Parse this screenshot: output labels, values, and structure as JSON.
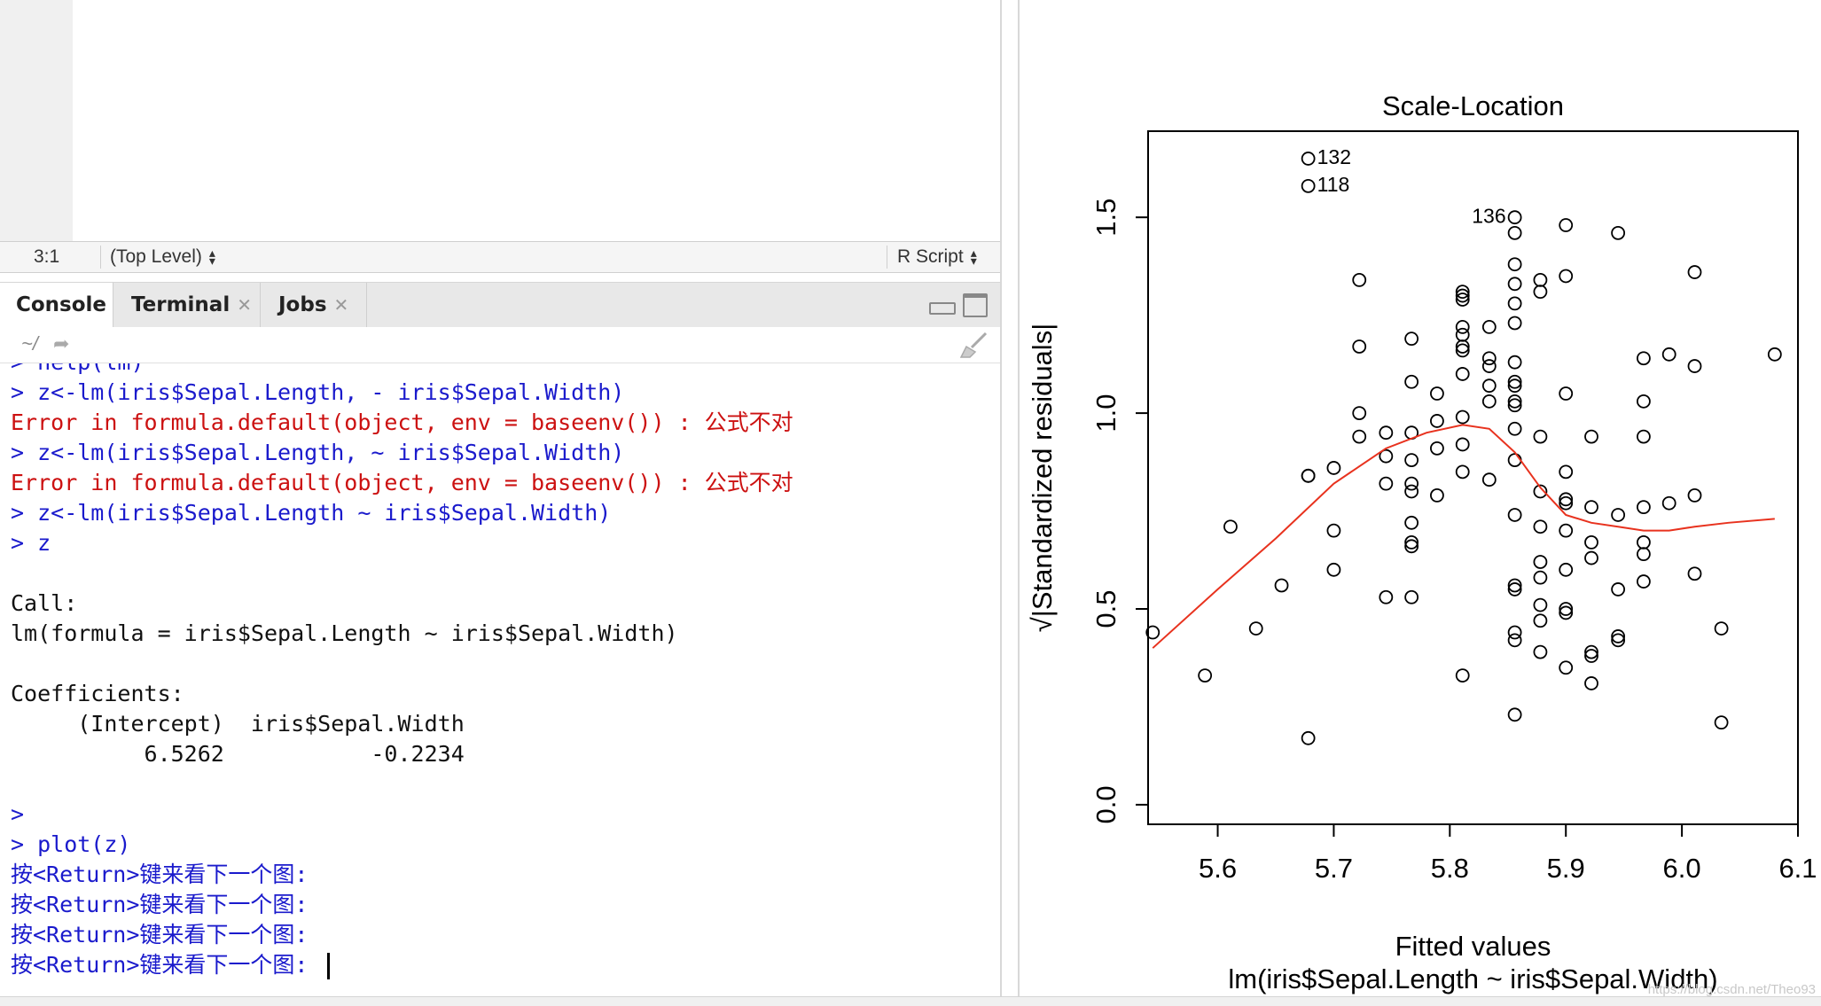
{
  "status_bar": {
    "position": "3:1",
    "scope": "(Top Level)",
    "file_type": "R Script"
  },
  "tabs": [
    {
      "label": "Console",
      "active": true,
      "closable": false
    },
    {
      "label": "Terminal",
      "active": false,
      "closable": true
    },
    {
      "label": "Jobs",
      "active": false,
      "closable": true
    }
  ],
  "path_bar": {
    "path": "~/",
    "icon": "arrow-share-icon",
    "clear_icon": "broom-icon"
  },
  "console": {
    "lines": [
      {
        "type": "cmd",
        "text": "> help(lm)"
      },
      {
        "type": "cmd",
        "text": "> z<-lm(iris$Sepal.Length, - iris$Sepal.Width)"
      },
      {
        "type": "err",
        "text": "Error in formula.default(object, env = baseenv()) : 公式不对"
      },
      {
        "type": "cmd",
        "text": "> z<-lm(iris$Sepal.Length, ~ iris$Sepal.Width)"
      },
      {
        "type": "err",
        "text": "Error in formula.default(object, env = baseenv()) : 公式不对"
      },
      {
        "type": "cmd",
        "text": "> z<-lm(iris$Sepal.Length ~ iris$Sepal.Width)"
      },
      {
        "type": "cmd",
        "text": "> z"
      },
      {
        "type": "out",
        "text": ""
      },
      {
        "type": "out",
        "text": "Call:"
      },
      {
        "type": "out",
        "text": "lm(formula = iris$Sepal.Length ~ iris$Sepal.Width)"
      },
      {
        "type": "out",
        "text": ""
      },
      {
        "type": "out",
        "text": "Coefficients:"
      },
      {
        "type": "out",
        "text": "     (Intercept)  iris$Sepal.Width"
      },
      {
        "type": "out",
        "text": "          6.5262           -0.2234"
      },
      {
        "type": "out",
        "text": ""
      },
      {
        "type": "cmd",
        "text": ">"
      },
      {
        "type": "cmd",
        "text": "> plot(z)"
      },
      {
        "type": "cmd",
        "text": "按<Return>键来看下一个图:"
      },
      {
        "type": "cmd",
        "text": "按<Return>键来看下一个图:"
      },
      {
        "type": "cmd",
        "text": "按<Return>键来看下一个图:"
      },
      {
        "type": "cmd",
        "text": "按<Return>键来看下一个图: "
      }
    ]
  },
  "chart_data": {
    "type": "scatter",
    "title": "Scale-Location",
    "xlabel": "Fitted values",
    "xlabel2": "lm(iris$Sepal.Length ~ iris$Sepal.Width)",
    "ylabel": "√|Standardized residuals|",
    "xlim": [
      5.54,
      6.1
    ],
    "ylim": [
      -0.05,
      1.72
    ],
    "x_ticks": [
      "5.6",
      "5.7",
      "5.8",
      "5.9",
      "6.0",
      "6.1"
    ],
    "x_tick_values": [
      5.6,
      5.7,
      5.8,
      5.9,
      6.0,
      6.1
    ],
    "y_ticks": [
      "0.0",
      "0.5",
      "1.0",
      "1.5"
    ],
    "y_tick_values": [
      0.0,
      0.5,
      1.0,
      1.5
    ],
    "points": [
      [
        5.544,
        0.44
      ],
      [
        5.589,
        0.33
      ],
      [
        5.633,
        0.45
      ],
      [
        5.611,
        0.71
      ],
      [
        5.655,
        0.56
      ],
      [
        5.678,
        0.17
      ],
      [
        5.678,
        0.84
      ],
      [
        5.678,
        0.84
      ],
      [
        5.7,
        0.6
      ],
      [
        5.7,
        0.7
      ],
      [
        5.7,
        0.86
      ],
      [
        5.678,
        1.65
      ],
      [
        5.678,
        1.58
      ],
      [
        5.722,
        0.94
      ],
      [
        5.722,
        1.0
      ],
      [
        5.722,
        1.17
      ],
      [
        5.722,
        1.34
      ],
      [
        5.745,
        0.53
      ],
      [
        5.745,
        0.82
      ],
      [
        5.745,
        0.89
      ],
      [
        5.745,
        0.95
      ],
      [
        5.767,
        0.53
      ],
      [
        5.767,
        0.66
      ],
      [
        5.767,
        0.67
      ],
      [
        5.767,
        0.72
      ],
      [
        5.767,
        0.8
      ],
      [
        5.767,
        0.82
      ],
      [
        5.767,
        0.88
      ],
      [
        5.767,
        0.95
      ],
      [
        5.767,
        1.08
      ],
      [
        5.767,
        1.19
      ],
      [
        5.789,
        0.79
      ],
      [
        5.789,
        0.91
      ],
      [
        5.789,
        0.98
      ],
      [
        5.789,
        1.05
      ],
      [
        5.811,
        0.33
      ],
      [
        5.811,
        0.85
      ],
      [
        5.811,
        0.92
      ],
      [
        5.811,
        0.99
      ],
      [
        5.811,
        1.1
      ],
      [
        5.811,
        1.16
      ],
      [
        5.811,
        1.17
      ],
      [
        5.811,
        1.2
      ],
      [
        5.811,
        1.22
      ],
      [
        5.811,
        1.29
      ],
      [
        5.811,
        1.3
      ],
      [
        5.811,
        1.31
      ],
      [
        5.834,
        0.83
      ],
      [
        5.834,
        1.03
      ],
      [
        5.834,
        1.07
      ],
      [
        5.834,
        1.12
      ],
      [
        5.834,
        1.14
      ],
      [
        5.834,
        1.22
      ],
      [
        5.856,
        0.23
      ],
      [
        5.856,
        0.42
      ],
      [
        5.856,
        0.44
      ],
      [
        5.856,
        0.55
      ],
      [
        5.856,
        0.56
      ],
      [
        5.856,
        0.74
      ],
      [
        5.856,
        0.88
      ],
      [
        5.856,
        0.96
      ],
      [
        5.856,
        1.02
      ],
      [
        5.856,
        1.03
      ],
      [
        5.856,
        1.07
      ],
      [
        5.856,
        1.08
      ],
      [
        5.856,
        1.13
      ],
      [
        5.856,
        1.23
      ],
      [
        5.856,
        1.28
      ],
      [
        5.856,
        1.33
      ],
      [
        5.856,
        1.38
      ],
      [
        5.856,
        1.46
      ],
      [
        5.856,
        1.5
      ],
      [
        5.878,
        0.39
      ],
      [
        5.878,
        0.47
      ],
      [
        5.878,
        0.51
      ],
      [
        5.878,
        0.58
      ],
      [
        5.878,
        0.62
      ],
      [
        5.878,
        0.71
      ],
      [
        5.878,
        0.8
      ],
      [
        5.878,
        0.94
      ],
      [
        5.878,
        1.31
      ],
      [
        5.878,
        1.34
      ],
      [
        5.9,
        0.35
      ],
      [
        5.9,
        0.49
      ],
      [
        5.9,
        0.5
      ],
      [
        5.9,
        0.6
      ],
      [
        5.9,
        0.7
      ],
      [
        5.9,
        0.77
      ],
      [
        5.9,
        0.78
      ],
      [
        5.9,
        0.85
      ],
      [
        5.9,
        1.05
      ],
      [
        5.9,
        1.35
      ],
      [
        5.9,
        1.48
      ],
      [
        5.922,
        0.31
      ],
      [
        5.922,
        0.38
      ],
      [
        5.922,
        0.39
      ],
      [
        5.922,
        0.63
      ],
      [
        5.922,
        0.67
      ],
      [
        5.922,
        0.76
      ],
      [
        5.922,
        0.94
      ],
      [
        5.945,
        0.42
      ],
      [
        5.945,
        0.43
      ],
      [
        5.945,
        0.55
      ],
      [
        5.945,
        0.74
      ],
      [
        5.945,
        1.46
      ],
      [
        5.967,
        0.57
      ],
      [
        5.967,
        0.64
      ],
      [
        5.967,
        0.67
      ],
      [
        5.967,
        0.76
      ],
      [
        5.967,
        0.94
      ],
      [
        5.967,
        1.03
      ],
      [
        5.967,
        1.14
      ],
      [
        5.989,
        0.77
      ],
      [
        5.989,
        1.15
      ],
      [
        6.011,
        0.59
      ],
      [
        6.011,
        0.79
      ],
      [
        6.011,
        1.12
      ],
      [
        6.011,
        1.36
      ],
      [
        6.034,
        0.21
      ],
      [
        6.034,
        0.45
      ],
      [
        6.08,
        1.15
      ]
    ],
    "labels": [
      {
        "text": "132",
        "x": 5.678,
        "y": 1.65,
        "side": "right"
      },
      {
        "text": "118",
        "x": 5.678,
        "y": 1.58,
        "side": "right"
      },
      {
        "text": "136",
        "x": 5.856,
        "y": 1.5,
        "side": "left"
      }
    ],
    "smooth_line": {
      "color": "#e8321e",
      "x": [
        5.544,
        5.6,
        5.65,
        5.7,
        5.745,
        5.78,
        5.811,
        5.834,
        5.856,
        5.878,
        5.9,
        5.922,
        5.945,
        5.967,
        5.989,
        6.011,
        6.04,
        6.08
      ],
      "y": [
        0.4,
        0.55,
        0.68,
        0.82,
        0.91,
        0.95,
        0.97,
        0.96,
        0.9,
        0.81,
        0.74,
        0.72,
        0.71,
        0.7,
        0.7,
        0.71,
        0.72,
        0.73
      ]
    },
    "grid": false
  },
  "watermark": "https://blog.csdn.net/Theo93"
}
